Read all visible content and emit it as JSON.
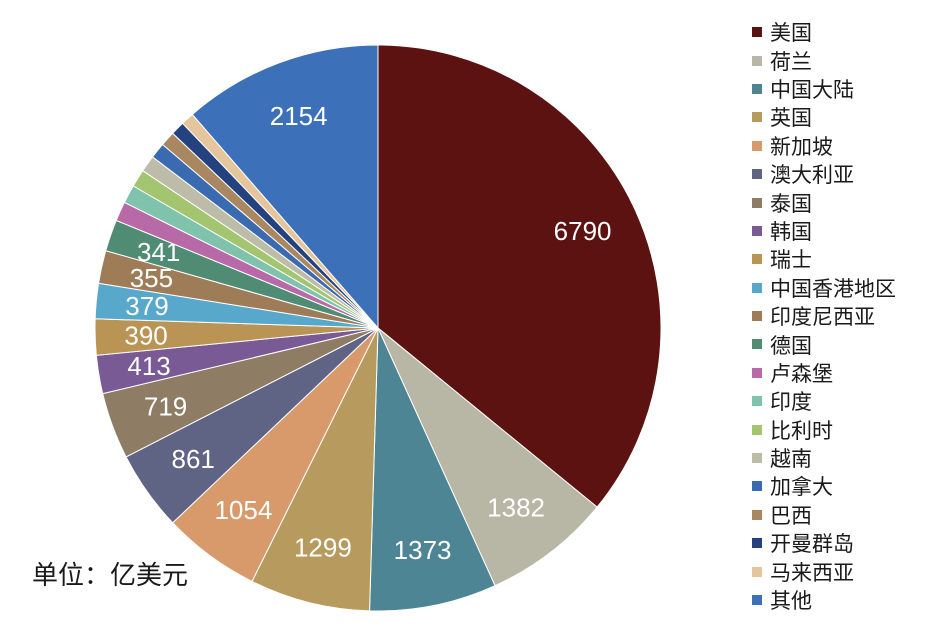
{
  "chart_data": {
    "type": "pie",
    "unit_label": "单位：亿美元",
    "start_angle_deg": 0,
    "direction": "clockwise",
    "slices": [
      {
        "name": "美国",
        "value": 6790,
        "color": "#5c1211",
        "label": "6790"
      },
      {
        "name": "荷兰",
        "value": 1382,
        "color": "#b8b6a5",
        "label": "1382"
      },
      {
        "name": "中国大陆",
        "value": 1373,
        "color": "#4e8595",
        "label": "1373"
      },
      {
        "name": "英国",
        "value": 1299,
        "color": "#b79b5e",
        "label": "1299"
      },
      {
        "name": "新加坡",
        "value": 1054,
        "color": "#d8996b",
        "label": "1054"
      },
      {
        "name": "澳大利亚",
        "value": 861,
        "color": "#5f6384",
        "label": "861"
      },
      {
        "name": "泰国",
        "value": 719,
        "color": "#8e7d64",
        "label": "719"
      },
      {
        "name": "韩国",
        "value": 413,
        "color": "#7a5a95",
        "label": "413"
      },
      {
        "name": "瑞士",
        "value": 390,
        "color": "#b99455",
        "label": "390"
      },
      {
        "name": "中国香港地区",
        "value": 379,
        "color": "#58a8cc",
        "label": "379"
      },
      {
        "name": "印度尼西亚",
        "value": 355,
        "color": "#9f7c58",
        "label": "355"
      },
      {
        "name": "德国",
        "value": 341,
        "color": "#4f8c73",
        "label": "341"
      },
      {
        "name": "卢森堡",
        "value": 210,
        "color": "#b76aa7",
        "label": ""
      },
      {
        "name": "印度",
        "value": 200,
        "color": "#80c3ad",
        "label": ""
      },
      {
        "name": "比利时",
        "value": 190,
        "color": "#a3c56f",
        "label": ""
      },
      {
        "name": "越南",
        "value": 180,
        "color": "#bcbca9",
        "label": ""
      },
      {
        "name": "加拿大",
        "value": 170,
        "color": "#3a6ab0",
        "label": ""
      },
      {
        "name": "巴西",
        "value": 160,
        "color": "#a88761",
        "label": ""
      },
      {
        "name": "开曼群岛",
        "value": 150,
        "color": "#24437e",
        "label": ""
      },
      {
        "name": "马来西亚",
        "value": 140,
        "color": "#e5c59b",
        "label": ""
      },
      {
        "name": "其他",
        "value": 2154,
        "color": "#3c70b8",
        "label": "2154"
      }
    ]
  }
}
